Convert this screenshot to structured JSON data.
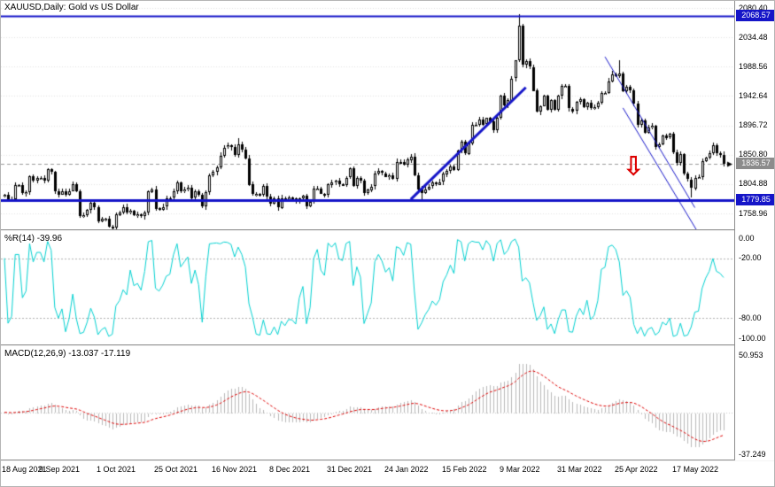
{
  "title": "XAUUSD,Daily: Gold vs US Dollar",
  "colors": {
    "level_line": "#1515c8",
    "badge_blue": "#1515c8",
    "badge_gray": "#8c8c8c",
    "current_line": "#9a9a9a",
    "grid": "#e2e2e2",
    "candle": "#000000",
    "wpr_line": "#00d0d0",
    "wpr_level_dash": "#b0b0b0",
    "macd_hist": "#b8b8b8",
    "macd_signal": "#dd0000",
    "macd_zero": "#c8c8c8",
    "arrow_red": "#dd0000"
  },
  "annotations": {
    "arrow_glyph": "⇩"
  },
  "indicators": {
    "wpr": {
      "name": "%R(14)",
      "value": "-39.96",
      "levels": [
        -20,
        -80
      ],
      "scale_labels": [
        "0.00",
        "-20.00",
        "-80.00",
        "-100.00"
      ],
      "scale_values": [
        0,
        -20,
        -80,
        -100
      ]
    },
    "macd": {
      "name": "MACD(12,26,9)",
      "value_main": "-13.037",
      "value_signal": "-17.119",
      "scale_labels": [
        "50.953",
        "-37.249"
      ],
      "scale_values": [
        50.953,
        -37.249
      ]
    }
  },
  "price_scale": {
    "labels": [
      {
        "text": "2080.40",
        "price": 2080.4,
        "badge": null
      },
      {
        "text": "2068.57",
        "price": 2068.57,
        "badge": "blue"
      },
      {
        "text": "2034.48",
        "price": 2034.48,
        "badge": null
      },
      {
        "text": "1988.56",
        "price": 1988.56,
        "badge": null
      },
      {
        "text": "1942.64",
        "price": 1942.64,
        "badge": null
      },
      {
        "text": "1896.72",
        "price": 1896.72,
        "badge": null
      },
      {
        "text": "1850.80",
        "price": 1850.8,
        "badge": null
      },
      {
        "text": "1836.57",
        "price": 1836.57,
        "badge": "gray"
      },
      {
        "text": "1804.88",
        "price": 1804.88,
        "badge": null
      },
      {
        "text": "1779.85",
        "price": 1779.85,
        "badge": "blue"
      },
      {
        "text": "1758.96",
        "price": 1758.96,
        "badge": null
      }
    ]
  },
  "date_axis": [
    {
      "text": "18 Aug 2021",
      "index": 0
    },
    {
      "text": "9 Sep 2021",
      "index": 16
    },
    {
      "text": "1 Oct 2021",
      "index": 32
    },
    {
      "text": "25 Oct 2021",
      "index": 48
    },
    {
      "text": "16 Nov 2021",
      "index": 64
    },
    {
      "text": "8 Dec 2021",
      "index": 80
    },
    {
      "text": "31 Dec 2021",
      "index": 96
    },
    {
      "text": "24 Jan 2022",
      "index": 112
    },
    {
      "text": "15 Feb 2022",
      "index": 128
    },
    {
      "text": "9 Mar 2022",
      "index": 144
    },
    {
      "text": "31 Mar 2022",
      "index": 160
    },
    {
      "text": "25 Apr 2022",
      "index": 176
    },
    {
      "text": "17 May 2022",
      "index": 192
    }
  ],
  "chart_data": {
    "type": "candlestick",
    "symbol": "XAUUSD",
    "timeframe": "Daily",
    "title": "Gold vs US Dollar",
    "y_axis": {
      "top_price": 2080.4,
      "bottom_price": 1758.96,
      "grid_step": 45.92
    },
    "current_price": 1836.57,
    "first_open": 1785.0,
    "wick_spread": 5,
    "closes": [
      1788,
      1780,
      1781,
      1803,
      1803,
      1790,
      1792,
      1817,
      1810,
      1814,
      1814,
      1810,
      1828,
      1824,
      1794,
      1789,
      1794,
      1788,
      1794,
      1805,
      1794,
      1755,
      1756,
      1764,
      1775,
      1768,
      1746,
      1750,
      1750,
      1738,
      1736,
      1757,
      1761,
      1769,
      1760,
      1763,
      1756,
      1757,
      1754,
      1760,
      1793,
      1797,
      1767,
      1765,
      1769,
      1782,
      1783,
      1793,
      1807,
      1793,
      1796,
      1799,
      1783,
      1793,
      1788,
      1770,
      1792,
      1818,
      1824,
      1831,
      1849,
      1862,
      1865,
      1863,
      1850,
      1867,
      1859,
      1845,
      1804,
      1789,
      1789,
      1788,
      1802,
      1785,
      1774,
      1782,
      1768,
      1783,
      1778,
      1784,
      1782,
      1776,
      1782,
      1786,
      1770,
      1777,
      1798,
      1798,
      1790,
      1788,
      1804,
      1808,
      1810,
      1805,
      1804,
      1815,
      1829,
      1801,
      1814,
      1810,
      1791,
      1796,
      1801,
      1821,
      1825,
      1822,
      1817,
      1819,
      1813,
      1840,
      1839,
      1835,
      1843,
      1848,
      1819,
      1797,
      1791,
      1797,
      1801,
      1807,
      1804,
      1808,
      1821,
      1826,
      1833,
      1827,
      1858,
      1871,
      1853,
      1869,
      1898,
      1898,
      1906,
      1898,
      1908,
      1903,
      1889,
      1908,
      1943,
      1928,
      1936,
      1970,
      1998,
      2052,
      1991,
      1997,
      1988,
      1951,
      1918,
      1927,
      1943,
      1921,
      1936,
      1921,
      1943,
      1958,
      1958,
      1923,
      1919,
      1933,
      1937,
      1925,
      1932,
      1923,
      1925,
      1932,
      1947,
      1948,
      1966,
      1977,
      1974,
      1978,
      1950,
      1957,
      1952,
      1931,
      1898,
      1905,
      1886,
      1894,
      1896,
      1863,
      1867,
      1881,
      1877,
      1883,
      1854,
      1838,
      1852,
      1821,
      1812,
      1799,
      1815,
      1816,
      1841,
      1846,
      1853,
      1866,
      1853,
      1851,
      1836.57
    ],
    "high_overrides": {
      "65": 1877,
      "143": 2070.4,
      "171": 1998
    },
    "low_overrides": {
      "30": 1733,
      "116": 1780,
      "191": 1785
    },
    "levels": [
      {
        "price": 2068.57,
        "width": 2
      },
      {
        "price": 1779.85,
        "width": 3
      }
    ],
    "trendline": {
      "from": {
        "index": 113,
        "price": 1781
      },
      "to": {
        "index": 145,
        "price": 1956
      }
    },
    "channel": [
      {
        "from": {
          "index": 167,
          "price": 2004
        },
        "to": {
          "index": 192,
          "price": 1768
        }
      },
      {
        "from": {
          "index": 172,
          "price": 1924
        },
        "to": {
          "index": 196,
          "price": 1700
        }
      }
    ],
    "arrow": {
      "index": 174,
      "price": 1852
    },
    "indicator_params": {
      "wpr_period": 14,
      "macd": [
        12,
        26,
        9
      ]
    }
  }
}
